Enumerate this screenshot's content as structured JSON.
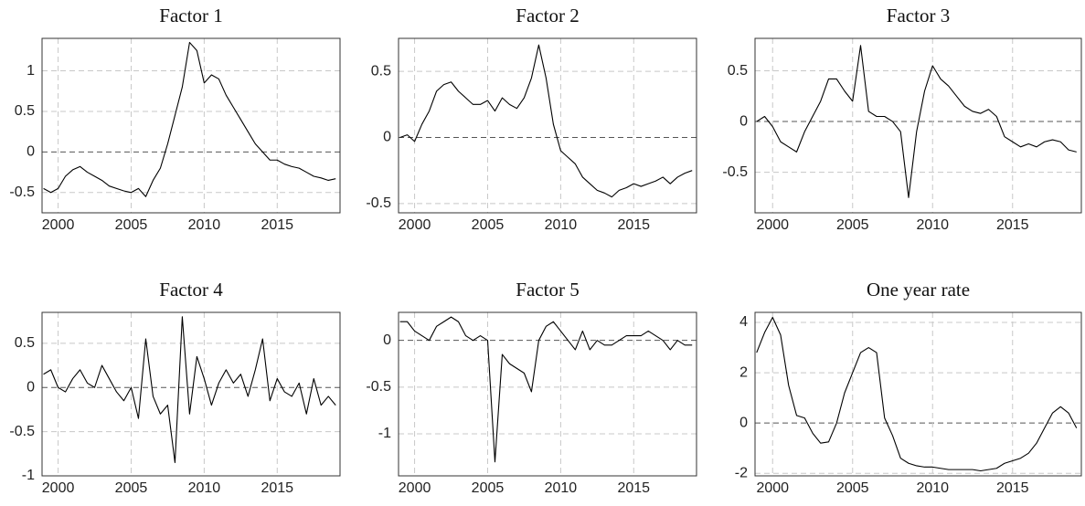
{
  "chart_data": [
    {
      "type": "line",
      "title": "Factor 1",
      "color": "#000000",
      "grid": true,
      "x": [
        1999,
        1999.5,
        2000,
        2000.5,
        2001,
        2001.5,
        2002,
        2002.5,
        2003,
        2003.5,
        2004,
        2004.5,
        2005,
        2005.5,
        2006,
        2006.5,
        2007,
        2007.5,
        2008,
        2008.5,
        2009,
        2009.5,
        2010,
        2010.5,
        2011,
        2011.5,
        2012,
        2012.5,
        2013,
        2013.5,
        2014,
        2014.5,
        2015,
        2015.5,
        2016,
        2016.5,
        2017,
        2017.5,
        2018,
        2018.5,
        2019
      ],
      "values": [
        -0.45,
        -0.5,
        -0.45,
        -0.3,
        -0.22,
        -0.18,
        -0.25,
        -0.3,
        -0.35,
        -0.42,
        -0.45,
        -0.48,
        -0.5,
        -0.45,
        -0.55,
        -0.35,
        -0.2,
        0.1,
        0.45,
        0.8,
        1.35,
        1.25,
        0.85,
        0.95,
        0.9,
        0.7,
        0.55,
        0.4,
        0.25,
        0.1,
        0,
        -0.1,
        -0.1,
        -0.15,
        -0.18,
        -0.2,
        -0.25,
        -0.3,
        -0.32,
        -0.35,
        -0.33
      ],
      "xlim": [
        1998.9,
        2019.3
      ],
      "xticks": [
        2000,
        2005,
        2010,
        2015
      ],
      "ylim": [
        -0.75,
        1.4
      ],
      "yticks": [
        -0.5,
        0,
        0.5,
        1
      ]
    },
    {
      "type": "line",
      "title": "Factor 2",
      "color": "#000000",
      "grid": true,
      "x": [
        1999,
        1999.5,
        2000,
        2000.5,
        2001,
        2001.5,
        2002,
        2002.5,
        2003,
        2003.5,
        2004,
        2004.5,
        2005,
        2005.5,
        2006,
        2006.5,
        2007,
        2007.5,
        2008,
        2008.5,
        2009,
        2009.5,
        2010,
        2010.5,
        2011,
        2011.5,
        2012,
        2012.5,
        2013,
        2013.5,
        2014,
        2014.5,
        2015,
        2015.5,
        2016,
        2016.5,
        2017,
        2017.5,
        2018,
        2018.5,
        2019
      ],
      "values": [
        0,
        0.02,
        -0.03,
        0.1,
        0.2,
        0.35,
        0.4,
        0.42,
        0.35,
        0.3,
        0.25,
        0.25,
        0.28,
        0.2,
        0.3,
        0.25,
        0.22,
        0.3,
        0.45,
        0.7,
        0.45,
        0.1,
        -0.1,
        -0.15,
        -0.2,
        -0.3,
        -0.35,
        -0.4,
        -0.42,
        -0.45,
        -0.4,
        -0.38,
        -0.35,
        -0.37,
        -0.35,
        -0.33,
        -0.3,
        -0.35,
        -0.3,
        -0.27,
        -0.25
      ],
      "xlim": [
        1998.9,
        2019.3
      ],
      "xticks": [
        2000,
        2005,
        2010,
        2015
      ],
      "ylim": [
        -0.57,
        0.75
      ],
      "yticks": [
        -0.5,
        0,
        0.5
      ]
    },
    {
      "type": "line",
      "title": "Factor 3",
      "color": "#000000",
      "grid": true,
      "x": [
        1999,
        1999.5,
        2000,
        2000.5,
        2001,
        2001.5,
        2002,
        2002.5,
        2003,
        2003.5,
        2004,
        2004.5,
        2005,
        2005.5,
        2006,
        2006.5,
        2007,
        2007.5,
        2008,
        2008.5,
        2009,
        2009.5,
        2010,
        2010.5,
        2011,
        2011.5,
        2012,
        2012.5,
        2013,
        2013.5,
        2014,
        2014.5,
        2015,
        2015.5,
        2016,
        2016.5,
        2017,
        2017.5,
        2018,
        2018.5,
        2019
      ],
      "values": [
        0,
        0.05,
        -0.05,
        -0.2,
        -0.25,
        -0.3,
        -0.1,
        0.05,
        0.2,
        0.42,
        0.42,
        0.3,
        0.2,
        0.75,
        0.1,
        0.05,
        0.05,
        0,
        -0.1,
        -0.75,
        -0.1,
        0.3,
        0.55,
        0.42,
        0.35,
        0.25,
        0.15,
        0.1,
        0.08,
        0.12,
        0.05,
        -0.15,
        -0.2,
        -0.25,
        -0.22,
        -0.25,
        -0.2,
        -0.18,
        -0.2,
        -0.28,
        -0.3
      ],
      "xlim": [
        1998.9,
        2019.3
      ],
      "xticks": [
        2000,
        2005,
        2010,
        2015
      ],
      "ylim": [
        -0.9,
        0.82
      ],
      "yticks": [
        -0.5,
        0,
        0.5
      ]
    },
    {
      "type": "line",
      "title": "Factor 4",
      "color": "#000000",
      "grid": true,
      "x": [
        1999,
        1999.5,
        2000,
        2000.5,
        2001,
        2001.5,
        2002,
        2002.5,
        2003,
        2003.5,
        2004,
        2004.5,
        2005,
        2005.5,
        2006,
        2006.5,
        2007,
        2007.5,
        2008,
        2008.5,
        2009,
        2009.5,
        2010,
        2010.5,
        2011,
        2011.5,
        2012,
        2012.5,
        2013,
        2013.5,
        2014,
        2014.5,
        2015,
        2015.5,
        2016,
        2016.5,
        2017,
        2017.5,
        2018,
        2018.5,
        2019
      ],
      "values": [
        0.15,
        0.2,
        0,
        -0.05,
        0.1,
        0.2,
        0.05,
        0,
        0.25,
        0.1,
        -0.05,
        -0.15,
        0,
        -0.35,
        0.55,
        -0.1,
        -0.3,
        -0.2,
        -0.85,
        0.8,
        -0.3,
        0.35,
        0.1,
        -0.2,
        0.05,
        0.2,
        0.05,
        0.15,
        -0.1,
        0.2,
        0.55,
        -0.15,
        0.1,
        -0.05,
        -0.1,
        0.05,
        -0.3,
        0.1,
        -0.2,
        -0.1,
        -0.2
      ],
      "xlim": [
        1998.9,
        2019.3
      ],
      "xticks": [
        2000,
        2005,
        2010,
        2015
      ],
      "ylim": [
        -1,
        0.85
      ],
      "yticks": [
        -1,
        -0.5,
        0,
        0.5
      ]
    },
    {
      "type": "line",
      "title": "Factor 5",
      "color": "#000000",
      "grid": true,
      "x": [
        1999,
        1999.5,
        2000,
        2000.5,
        2001,
        2001.5,
        2002,
        2002.5,
        2003,
        2003.5,
        2004,
        2004.5,
        2005,
        2005.5,
        2006,
        2006.5,
        2007,
        2007.5,
        2008,
        2008.5,
        2009,
        2009.5,
        2010,
        2010.5,
        2011,
        2011.5,
        2012,
        2012.5,
        2013,
        2013.5,
        2014,
        2014.5,
        2015,
        2015.5,
        2016,
        2016.5,
        2017,
        2017.5,
        2018,
        2018.5,
        2019
      ],
      "values": [
        0.2,
        0.2,
        0.1,
        0.05,
        0,
        0.15,
        0.2,
        0.25,
        0.2,
        0.05,
        0,
        0.05,
        0,
        -1.3,
        -0.15,
        -0.25,
        -0.3,
        -0.35,
        -0.55,
        0,
        0.15,
        0.2,
        0.1,
        0,
        -0.1,
        0.1,
        -0.1,
        0,
        -0.05,
        -0.05,
        0,
        0.05,
        0.05,
        0.05,
        0.1,
        0.05,
        0,
        -0.1,
        0,
        -0.05,
        -0.05
      ],
      "xlim": [
        1998.9,
        2019.3
      ],
      "xticks": [
        2000,
        2005,
        2010,
        2015
      ],
      "ylim": [
        -1.45,
        0.3
      ],
      "yticks": [
        -1,
        -0.5,
        0
      ]
    },
    {
      "type": "line",
      "title": "One year rate",
      "color": "#000000",
      "grid": true,
      "x": [
        1999,
        1999.5,
        2000,
        2000.5,
        2001,
        2001.5,
        2002,
        2002.5,
        2003,
        2003.5,
        2004,
        2004.5,
        2005,
        2005.5,
        2006,
        2006.5,
        2007,
        2007.5,
        2008,
        2008.5,
        2009,
        2009.5,
        2010,
        2010.5,
        2011,
        2011.5,
        2012,
        2012.5,
        2013,
        2013.5,
        2014,
        2014.5,
        2015,
        2015.5,
        2016,
        2016.5,
        2017,
        2017.5,
        2018,
        2018.5,
        2019
      ],
      "values": [
        2.8,
        3.6,
        4.2,
        3.5,
        1.5,
        0.3,
        0.2,
        -0.4,
        -0.8,
        -0.75,
        0,
        1.2,
        2,
        2.8,
        3,
        2.8,
        0.2,
        -0.5,
        -1.4,
        -1.6,
        -1.7,
        -1.75,
        -1.75,
        -1.8,
        -1.85,
        -1.85,
        -1.85,
        -1.85,
        -1.9,
        -1.85,
        -1.8,
        -1.6,
        -1.5,
        -1.4,
        -1.2,
        -0.8,
        -0.2,
        0.4,
        0.65,
        0.4,
        -0.2
      ],
      "xlim": [
        1998.9,
        2019.3
      ],
      "xticks": [
        2000,
        2005,
        2010,
        2015
      ],
      "ylim": [
        -2.1,
        4.4
      ],
      "yticks": [
        -2,
        0,
        2,
        4
      ]
    }
  ]
}
